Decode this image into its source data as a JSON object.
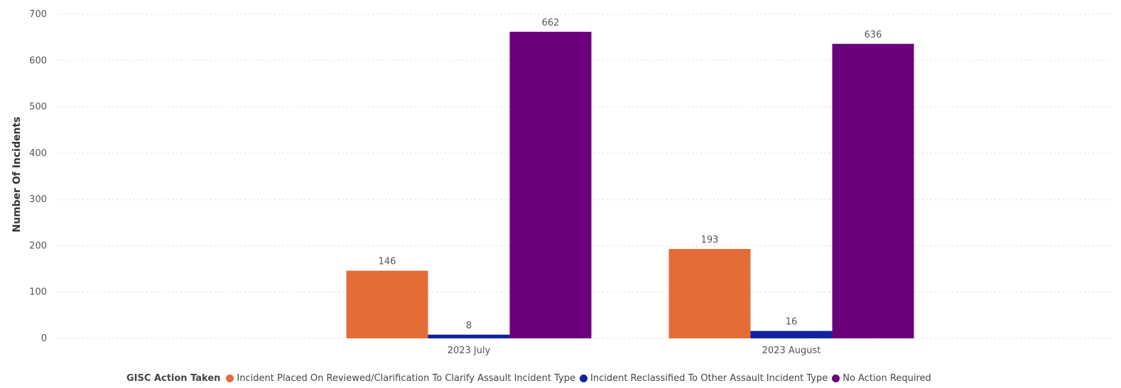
{
  "chart_data": {
    "type": "bar",
    "ylabel": "Number Of Incidents",
    "xlabel": "",
    "ylim": [
      0,
      700
    ],
    "yticks": [
      0,
      100,
      200,
      300,
      400,
      500,
      600,
      700
    ],
    "grid": true,
    "legend_placement": "bottom",
    "categories": [
      "2023 July",
      "2023 August"
    ],
    "series": [
      {
        "name": "Incident Placed On Reviewed/Clarification To Clarify Assault Incident Type",
        "color": "#E46C36",
        "values": [
          146,
          193
        ]
      },
      {
        "name": "Incident Reclassified To Other Assault Incident Type",
        "color": "#12239E",
        "values": [
          8,
          16
        ]
      },
      {
        "name": "No Action Required",
        "color": "#6B007B",
        "values": [
          662,
          636
        ]
      }
    ]
  },
  "legend": {
    "title": "GISC Action Taken"
  }
}
